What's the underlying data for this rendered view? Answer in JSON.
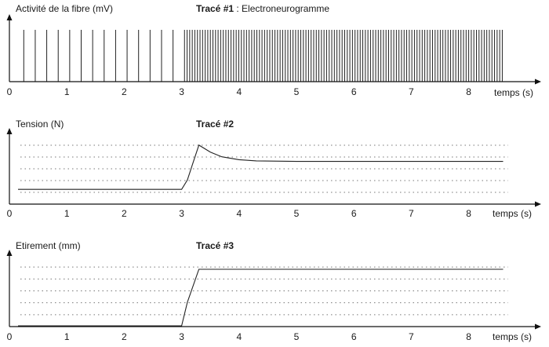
{
  "chart_data": [
    {
      "type": "line",
      "panel": "trace-1",
      "ylabel": "Activité de la fibre (mV)",
      "title_bold": "Tracé #1",
      "title_rest": " : Electroneurogramme",
      "xlabel": "temps (s)",
      "xticks": [
        "0",
        "1",
        "2",
        "3",
        "4",
        "5",
        "6",
        "7",
        "8"
      ],
      "xlim": [
        0,
        8.6
      ],
      "grid": false,
      "spikes": {
        "before_stretch": {
          "start": 0.25,
          "end": 3.0,
          "interval": 0.2
        },
        "after_stretch": {
          "start": 3.05,
          "end": 8.6,
          "interval": 0.045
        }
      }
    },
    {
      "type": "line",
      "panel": "trace-2",
      "ylabel": "Tension (N)",
      "title_bold": "Tracé #2",
      "title_rest": "",
      "xlabel": "temps (s)",
      "xticks": [
        "0",
        "1",
        "2",
        "3",
        "4",
        "5",
        "6",
        "7",
        "8"
      ],
      "xlim": [
        0,
        8.6
      ],
      "ylim": [
        0,
        6
      ],
      "grid": true,
      "series": [
        {
          "x": [
            0.15,
            3.0,
            3.1,
            3.2,
            3.3,
            3.5,
            3.7,
            4.0,
            4.3,
            5.0,
            6.0,
            7.0,
            8.6
          ],
          "y": [
            1.2,
            1.2,
            2.0,
            3.5,
            5.0,
            4.4,
            4.0,
            3.75,
            3.65,
            3.6,
            3.6,
            3.6,
            3.6
          ]
        }
      ]
    },
    {
      "type": "line",
      "panel": "trace-3",
      "ylabel": "Etirement (mm)",
      "title_bold": "Tracé #3",
      "title_rest": "",
      "xlabel": "temps (s)",
      "xticks": [
        "0",
        "1",
        "2",
        "3",
        "4",
        "5",
        "6",
        "7",
        "8"
      ],
      "xlim": [
        0,
        8.6
      ],
      "ylim": [
        0,
        6
      ],
      "grid": true,
      "series": [
        {
          "x": [
            0.15,
            3.0,
            3.1,
            3.3,
            8.6
          ],
          "y": [
            0,
            0,
            2.0,
            4.8,
            4.8
          ]
        }
      ]
    }
  ]
}
